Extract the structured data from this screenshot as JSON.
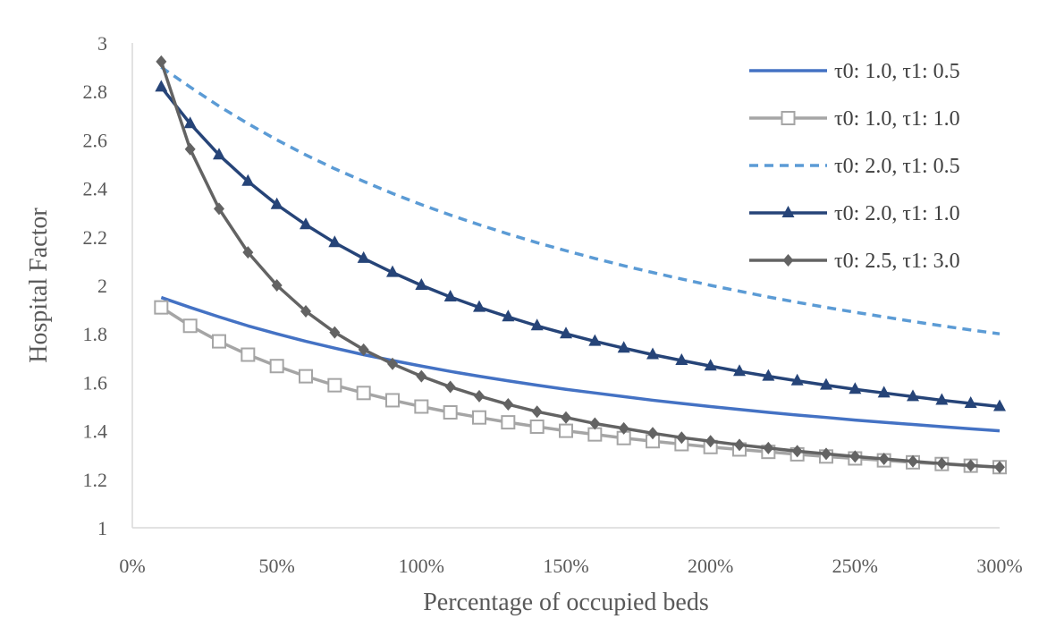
{
  "chart_data": {
    "type": "line",
    "title": "",
    "xlabel": "Percentage of occupied beds",
    "ylabel": "Hospital Factor",
    "x": [
      10,
      20,
      30,
      40,
      50,
      60,
      70,
      80,
      90,
      100,
      110,
      120,
      130,
      140,
      150,
      160,
      170,
      180,
      190,
      200,
      210,
      220,
      230,
      240,
      250,
      260,
      270,
      280,
      290,
      300
    ],
    "xlim": [
      0,
      300
    ],
    "xticks": [
      0,
      50,
      100,
      150,
      200,
      250,
      300
    ],
    "xtick_labels": [
      "0%",
      "50%",
      "100%",
      "150%",
      "200%",
      "250%",
      "300%"
    ],
    "ylim": [
      1,
      3
    ],
    "yticks": [
      1,
      1.2,
      1.4,
      1.6,
      1.8,
      2,
      2.2,
      2.4,
      2.6,
      2.8,
      3
    ],
    "ytick_labels": [
      "1",
      "1.2",
      "1.4",
      "1.6",
      "1.8",
      "2",
      "2.2",
      "2.4",
      "2.6",
      "2.8",
      "3"
    ],
    "grid": false,
    "legend_position": "top-right",
    "series": [
      {
        "name": "τ0: 1.0, τ1: 0.5",
        "color": "#4472c4",
        "style": "solid",
        "marker": "none",
        "values": [
          1.95,
          1.909,
          1.87,
          1.833,
          1.8,
          1.769,
          1.741,
          1.714,
          1.69,
          1.667,
          1.645,
          1.625,
          1.606,
          1.588,
          1.571,
          1.556,
          1.541,
          1.526,
          1.513,
          1.5,
          1.488,
          1.476,
          1.465,
          1.455,
          1.444,
          1.435,
          1.426,
          1.417,
          1.408,
          1.4
        ]
      },
      {
        "name": "τ0: 1.0, τ1: 1.0",
        "color": "#a5a5a5",
        "style": "solid",
        "marker": "square-open",
        "values": [
          1.909,
          1.833,
          1.769,
          1.714,
          1.667,
          1.625,
          1.588,
          1.556,
          1.526,
          1.5,
          1.476,
          1.455,
          1.435,
          1.417,
          1.4,
          1.385,
          1.37,
          1.357,
          1.345,
          1.333,
          1.323,
          1.313,
          1.303,
          1.294,
          1.286,
          1.278,
          1.27,
          1.263,
          1.256,
          1.25
        ]
      },
      {
        "name": "τ0: 2.0, τ1: 0.5",
        "color": "#5b9bd5",
        "style": "dashed",
        "marker": "none",
        "values": [
          2.9,
          2.818,
          2.739,
          2.667,
          2.6,
          2.538,
          2.481,
          2.429,
          2.379,
          2.333,
          2.29,
          2.25,
          2.212,
          2.176,
          2.143,
          2.111,
          2.081,
          2.053,
          2.026,
          2.0,
          1.976,
          1.952,
          1.93,
          1.909,
          1.889,
          1.87,
          1.851,
          1.833,
          1.816,
          1.8
        ]
      },
      {
        "name": "τ0: 2.0, τ1: 1.0",
        "color": "#264478",
        "style": "solid",
        "marker": "triangle",
        "values": [
          2.818,
          2.667,
          2.538,
          2.429,
          2.333,
          2.25,
          2.176,
          2.111,
          2.053,
          2.0,
          1.952,
          1.909,
          1.87,
          1.833,
          1.8,
          1.769,
          1.741,
          1.714,
          1.69,
          1.667,
          1.645,
          1.625,
          1.606,
          1.588,
          1.571,
          1.556,
          1.541,
          1.526,
          1.513,
          1.5
        ]
      },
      {
        "name": "τ0: 2.5, τ1: 3.0",
        "color": "#636363",
        "style": "solid",
        "marker": "diamond",
        "values": [
          2.923,
          2.562,
          2.316,
          2.136,
          2.0,
          1.893,
          1.806,
          1.735,
          1.676,
          1.625,
          1.581,
          1.543,
          1.509,
          1.479,
          1.455,
          1.43,
          1.41,
          1.39,
          1.372,
          1.357,
          1.342,
          1.329,
          1.316,
          1.305,
          1.294,
          1.284,
          1.274,
          1.265,
          1.257,
          1.25
        ]
      }
    ]
  }
}
